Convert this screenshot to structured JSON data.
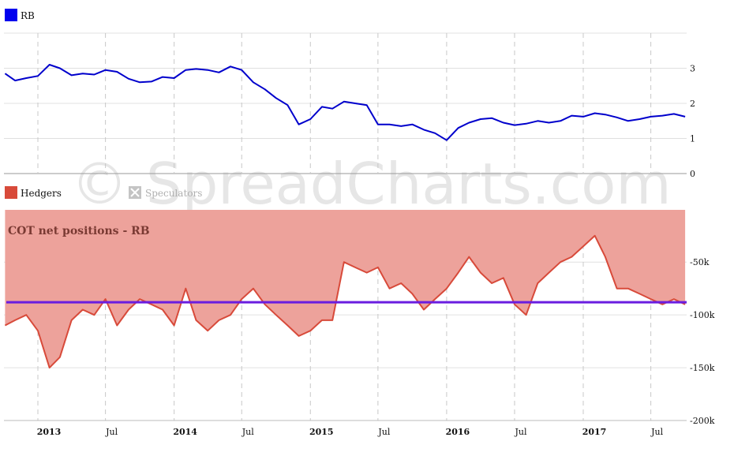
{
  "watermark": "© SpreadCharts.com",
  "colors": {
    "price": "#0000cc",
    "hedgers_line": "#d84a3a",
    "hedgers_fill": "#eda29b",
    "avg_line": "#6a1de0",
    "legend_rb": "#0000ee",
    "legend_hedgers": "#d84a3a",
    "grid": "#e0e0e0",
    "axis": "#888888"
  },
  "legend": {
    "rb": "RB",
    "hedgers": "Hedgers",
    "speculators": "Speculators"
  },
  "chart_data": [
    {
      "type": "line",
      "series": [
        {
          "name": "RB",
          "x": [
            "2012-10-05",
            "2012-11-01",
            "2012-12-01",
            "2013-01-01",
            "2013-02-01",
            "2013-03-01",
            "2013-04-01",
            "2013-05-01",
            "2013-06-01",
            "2013-07-01",
            "2013-08-01",
            "2013-09-01",
            "2013-10-01",
            "2013-11-01",
            "2013-12-01",
            "2014-01-01",
            "2014-02-01",
            "2014-03-01",
            "2014-04-01",
            "2014-05-01",
            "2014-06-01",
            "2014-07-01",
            "2014-08-01",
            "2014-09-01",
            "2014-10-01",
            "2014-11-01",
            "2014-12-01",
            "2015-01-01",
            "2015-02-01",
            "2015-03-01",
            "2015-04-01",
            "2015-05-01",
            "2015-06-01",
            "2015-07-01",
            "2015-08-01",
            "2015-09-01",
            "2015-10-01",
            "2015-11-01",
            "2015-12-01",
            "2016-01-01",
            "2016-02-01",
            "2016-03-01",
            "2016-04-01",
            "2016-05-01",
            "2016-06-01",
            "2016-07-01",
            "2016-08-01",
            "2016-09-01",
            "2016-10-01",
            "2016-11-01",
            "2016-12-01",
            "2017-01-01",
            "2017-02-01",
            "2017-03-01",
            "2017-04-01",
            "2017-05-01",
            "2017-06-01",
            "2017-07-01",
            "2017-08-01",
            "2017-09-01",
            "2017-10-01"
          ],
          "y": [
            2.85,
            2.65,
            2.72,
            2.78,
            3.1,
            3.0,
            2.8,
            2.85,
            2.82,
            2.95,
            2.9,
            2.7,
            2.6,
            2.62,
            2.75,
            2.72,
            2.95,
            2.98,
            2.95,
            2.88,
            3.05,
            2.95,
            2.6,
            2.4,
            2.15,
            1.95,
            1.4,
            1.55,
            1.9,
            1.85,
            2.05,
            2.0,
            1.95,
            1.4,
            1.4,
            1.35,
            1.4,
            1.25,
            1.15,
            0.95,
            1.3,
            1.45,
            1.55,
            1.58,
            1.45,
            1.38,
            1.42,
            1.5,
            1.45,
            1.5,
            1.65,
            1.62,
            1.72,
            1.68,
            1.6,
            1.5,
            1.55,
            1.62,
            1.65,
            1.7,
            1.62
          ]
        }
      ],
      "yticks": [
        0,
        1,
        2,
        3
      ],
      "ylim": [
        0,
        4
      ]
    },
    {
      "type": "area",
      "title": "COT net positions - RB",
      "series": [
        {
          "name": "Hedgers",
          "x": [
            "2012-10-05",
            "2012-11-01",
            "2012-12-01",
            "2013-01-01",
            "2013-02-01",
            "2013-03-01",
            "2013-04-01",
            "2013-05-01",
            "2013-06-01",
            "2013-07-01",
            "2013-08-01",
            "2013-09-01",
            "2013-10-01",
            "2013-11-01",
            "2013-12-01",
            "2014-01-01",
            "2014-02-01",
            "2014-03-01",
            "2014-04-01",
            "2014-05-01",
            "2014-06-01",
            "2014-07-01",
            "2014-08-01",
            "2014-09-01",
            "2014-10-01",
            "2014-11-01",
            "2014-12-01",
            "2015-01-01",
            "2015-02-01",
            "2015-03-01",
            "2015-04-01",
            "2015-05-01",
            "2015-06-01",
            "2015-07-01",
            "2015-08-01",
            "2015-09-01",
            "2015-10-01",
            "2015-11-01",
            "2015-12-01",
            "2016-01-01",
            "2016-02-01",
            "2016-03-01",
            "2016-04-01",
            "2016-05-01",
            "2016-06-01",
            "2016-07-01",
            "2016-08-01",
            "2016-09-01",
            "2016-10-01",
            "2016-11-01",
            "2016-12-01",
            "2017-01-01",
            "2017-02-01",
            "2017-03-01",
            "2017-04-01",
            "2017-05-01",
            "2017-06-01",
            "2017-07-01",
            "2017-08-01",
            "2017-09-01",
            "2017-10-01"
          ],
          "y": [
            -110,
            -105,
            -100,
            -115,
            -150,
            -140,
            -105,
            -95,
            -100,
            -85,
            -110,
            -95,
            -85,
            -90,
            -95,
            -110,
            -75,
            -105,
            -115,
            -105,
            -100,
            -85,
            -75,
            -90,
            -100,
            -110,
            -120,
            -115,
            -105,
            -105,
            -50,
            -55,
            -60,
            -55,
            -75,
            -70,
            -80,
            -95,
            -85,
            -75,
            -60,
            -45,
            -60,
            -70,
            -65,
            -90,
            -100,
            -70,
            -60,
            -50,
            -45,
            -35,
            -25,
            -45,
            -75,
            -75,
            -80,
            -85,
            -90,
            -85,
            -90
          ]
        }
      ],
      "reference_line": -88,
      "yticks": [
        -50,
        -100,
        -150,
        -200
      ],
      "ytick_labels": [
        "-50k",
        "-100k",
        "-150k",
        "-200k"
      ],
      "ylim": [
        -200,
        -0.5
      ]
    }
  ],
  "x_axis": {
    "ticks": [
      {
        "date": "2013-01-01",
        "label": "2013",
        "major": true
      },
      {
        "date": "2013-07-01",
        "label": "Jul",
        "major": false
      },
      {
        "date": "2014-01-01",
        "label": "2014",
        "major": true
      },
      {
        "date": "2014-07-01",
        "label": "Jul",
        "major": false
      },
      {
        "date": "2015-01-01",
        "label": "2015",
        "major": true
      },
      {
        "date": "2015-07-01",
        "label": "Jul",
        "major": false
      },
      {
        "date": "2016-01-01",
        "label": "2016",
        "major": true
      },
      {
        "date": "2016-07-01",
        "label": "Jul",
        "major": false
      },
      {
        "date": "2017-01-01",
        "label": "2017",
        "major": true
      },
      {
        "date": "2017-07-01",
        "label": "Jul",
        "major": false
      }
    ]
  }
}
